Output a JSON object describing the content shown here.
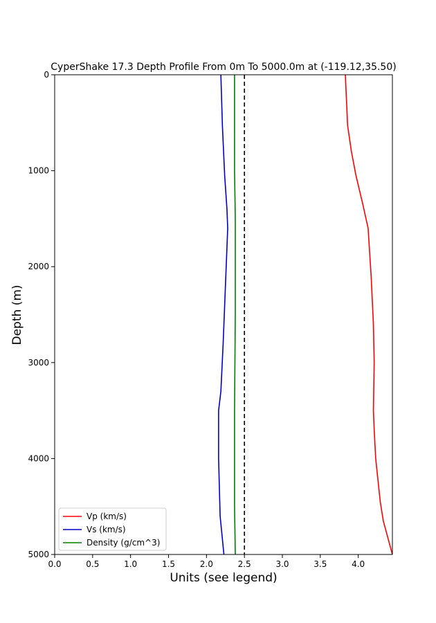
{
  "chart_data": {
    "type": "line",
    "title": "CyperShake 17.3 Depth Profile From 0m To 5000.0m at (-119.12,35.50)",
    "xlabel": "Units (see legend)",
    "ylabel": "Depth (m)",
    "xlim": [
      0,
      4.45
    ],
    "ylim": [
      5000,
      0
    ],
    "y_inverted": true,
    "grid": false,
    "legend_position": "lower-left",
    "x_ticks": [
      "0.0",
      "0.5",
      "1.0",
      "1.5",
      "2.0",
      "2.5",
      "3.0",
      "3.5",
      "4.0"
    ],
    "y_ticks": [
      "0",
      "1000",
      "2000",
      "3000",
      "4000",
      "5000"
    ],
    "reference_line": {
      "x": 2.5,
      "style": "dashed",
      "color": "#000000"
    },
    "series": [
      {
        "name": "Vp (km/s)",
        "color": "#ff0000",
        "points": [
          [
            3.83,
            0
          ],
          [
            3.86,
            530
          ],
          [
            3.91,
            800
          ],
          [
            3.97,
            1050
          ],
          [
            4.06,
            1350
          ],
          [
            4.13,
            1600
          ],
          [
            4.17,
            2100
          ],
          [
            4.2,
            2600
          ],
          [
            4.21,
            3000
          ],
          [
            4.2,
            3500
          ],
          [
            4.21,
            3700
          ],
          [
            4.23,
            4000
          ],
          [
            4.29,
            4450
          ],
          [
            4.33,
            4650
          ],
          [
            4.45,
            5000
          ]
        ]
      },
      {
        "name": "Vs (km/s)",
        "color": "#0000cc",
        "points": [
          [
            2.19,
            0
          ],
          [
            2.21,
            530
          ],
          [
            2.24,
            1050
          ],
          [
            2.27,
            1400
          ],
          [
            2.28,
            1600
          ],
          [
            2.25,
            2200
          ],
          [
            2.22,
            2800
          ],
          [
            2.19,
            3300
          ],
          [
            2.16,
            3500
          ],
          [
            2.16,
            4000
          ],
          [
            2.18,
            4600
          ],
          [
            2.23,
            5000
          ]
        ]
      },
      {
        "name": "Density (g/cm^3)",
        "color": "#008000",
        "points": [
          [
            2.37,
            0
          ],
          [
            2.37,
            1000
          ],
          [
            2.38,
            1500
          ],
          [
            2.38,
            2500
          ],
          [
            2.37,
            3500
          ],
          [
            2.37,
            4500
          ],
          [
            2.38,
            5000
          ]
        ]
      }
    ]
  }
}
